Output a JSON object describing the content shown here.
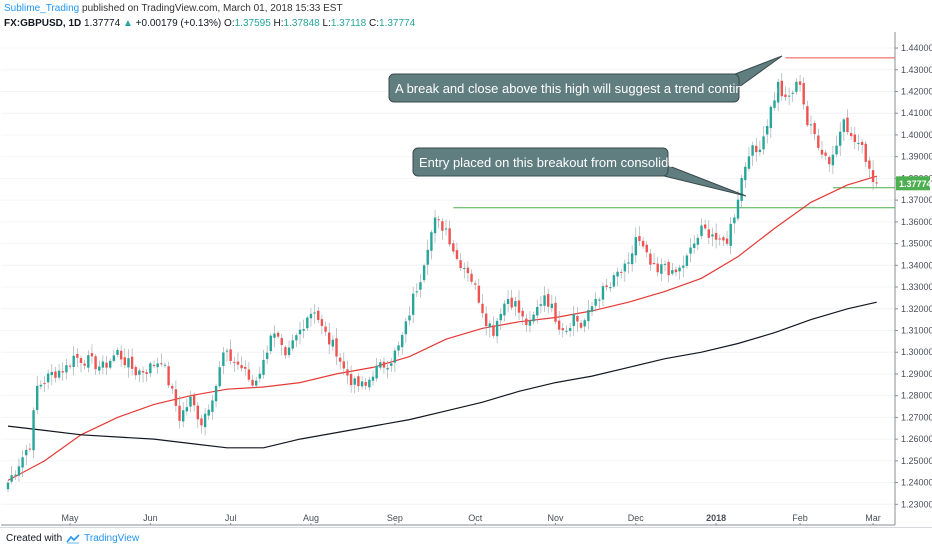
{
  "header": {
    "author": "Sublime_Trading",
    "published": "published on TradingView.com, March 01, 2018 15:33 EST"
  },
  "quote": {
    "symbol": "FX:GBPUSD, 1D",
    "last": "1.37774",
    "arrow": "▲",
    "change": "+0.00179 (+0.13%)",
    "o_label": "O:",
    "o": "1.37595",
    "h_label": "H:",
    "h": "1.37848",
    "l_label": "L:",
    "l": "1.37118",
    "c_label": "C:",
    "c": "1.37774"
  },
  "footer": {
    "created_with": "Created with",
    "brand": "TradingView"
  },
  "colors": {
    "up": "#26a69a",
    "down": "#ef5350",
    "ma_short": "#e53935",
    "ma_long": "#131722",
    "level_green": "#4caf50",
    "level_red": "#ef5350",
    "callout_fill": "#607d80"
  },
  "chart_data": {
    "type": "candlestick",
    "symbol": "FX:GBPUSD",
    "interval": "1D",
    "y_axis": {
      "range": [
        1.226,
        1.446
      ],
      "ticks": [
        "1.44000",
        "1.43000",
        "1.42000",
        "1.41000",
        "1.40000",
        "1.39000",
        "1.38000",
        "1.37000",
        "1.36000",
        "1.35000",
        "1.34000",
        "1.33000",
        "1.32000",
        "1.31000",
        "1.30000",
        "1.29000",
        "1.28000",
        "1.27000",
        "1.26000",
        "1.25000",
        "1.24000",
        "1.23000"
      ]
    },
    "x_axis": {
      "labels": [
        {
          "label": "May",
          "index": 17
        },
        {
          "label": "Jun",
          "index": 39
        },
        {
          "label": "Jul",
          "index": 61
        },
        {
          "label": "Aug",
          "index": 83
        },
        {
          "label": "Sep",
          "index": 106
        },
        {
          "label": "Oct",
          "index": 128
        },
        {
          "label": "Nov",
          "index": 150
        },
        {
          "label": "Dec",
          "index": 172
        },
        {
          "label": "2018",
          "index": 194
        },
        {
          "label": "Feb",
          "index": 217
        },
        {
          "label": "Mar",
          "index": 237
        }
      ]
    },
    "last_price_label": "1.37774",
    "close_path": [
      [
        0,
        1.24
      ],
      [
        2,
        1.246
      ],
      [
        4,
        1.252
      ],
      [
        6,
        1.258
      ],
      [
        8,
        1.284
      ],
      [
        12,
        1.29
      ],
      [
        16,
        1.293
      ],
      [
        18,
        1.298
      ],
      [
        22,
        1.296
      ],
      [
        26,
        1.293
      ],
      [
        30,
        1.3
      ],
      [
        32,
        1.296
      ],
      [
        35,
        1.291
      ],
      [
        38,
        1.292
      ],
      [
        42,
        1.297
      ],
      [
        45,
        1.281
      ],
      [
        47,
        1.27
      ],
      [
        50,
        1.278
      ],
      [
        53,
        1.268
      ],
      [
        55,
        1.276
      ],
      [
        57,
        1.285
      ],
      [
        59,
        1.299
      ],
      [
        61,
        1.297
      ],
      [
        64,
        1.293
      ],
      [
        67,
        1.285
      ],
      [
        70,
        1.295
      ],
      [
        72,
        1.309
      ],
      [
        74,
        1.305
      ],
      [
        76,
        1.296
      ],
      [
        78,
        1.304
      ],
      [
        80,
        1.31
      ],
      [
        82,
        1.317
      ],
      [
        84,
        1.32
      ],
      [
        86,
        1.311
      ],
      [
        88,
        1.305
      ],
      [
        90,
        1.301
      ],
      [
        92,
        1.292
      ],
      [
        95,
        1.285
      ],
      [
        98,
        1.284
      ],
      [
        100,
        1.291
      ],
      [
        102,
        1.293
      ],
      [
        105,
        1.297
      ],
      [
        107,
        1.302
      ],
      [
        109,
        1.312
      ],
      [
        111,
        1.325
      ],
      [
        113,
        1.335
      ],
      [
        115,
        1.35
      ],
      [
        117,
        1.36
      ],
      [
        120,
        1.357
      ],
      [
        123,
        1.343
      ],
      [
        126,
        1.338
      ],
      [
        129,
        1.325
      ],
      [
        131,
        1.315
      ],
      [
        133,
        1.31
      ],
      [
        135,
        1.32
      ],
      [
        137,
        1.325
      ],
      [
        139,
        1.322
      ],
      [
        141,
        1.315
      ],
      [
        143,
        1.312
      ],
      [
        145,
        1.32
      ],
      [
        147,
        1.327
      ],
      [
        149,
        1.32
      ],
      [
        151,
        1.313
      ],
      [
        153,
        1.311
      ],
      [
        155,
        1.317
      ],
      [
        157,
        1.312
      ],
      [
        159,
        1.317
      ],
      [
        161,
        1.325
      ],
      [
        163,
        1.328
      ],
      [
        165,
        1.33
      ],
      [
        167,
        1.336
      ],
      [
        170,
        1.339
      ],
      [
        172,
        1.353
      ],
      [
        174,
        1.347
      ],
      [
        176,
        1.34
      ],
      [
        178,
        1.336
      ],
      [
        180,
        1.341
      ],
      [
        182,
        1.335
      ],
      [
        184,
        1.338
      ],
      [
        186,
        1.343
      ],
      [
        188,
        1.35
      ],
      [
        190,
        1.356
      ],
      [
        193,
        1.355
      ],
      [
        195,
        1.349
      ],
      [
        197,
        1.352
      ],
      [
        199,
        1.364
      ],
      [
        201,
        1.38
      ],
      [
        203,
        1.393
      ],
      [
        205,
        1.392
      ],
      [
        207,
        1.4
      ],
      [
        209,
        1.412
      ],
      [
        211,
        1.423
      ],
      [
        213,
        1.415
      ],
      [
        215,
        1.42
      ],
      [
        217,
        1.425
      ],
      [
        219,
        1.405
      ],
      [
        221,
        1.4
      ],
      [
        223,
        1.393
      ],
      [
        225,
        1.388
      ],
      [
        227,
        1.395
      ],
      [
        229,
        1.41
      ],
      [
        231,
        1.398
      ],
      [
        233,
        1.396
      ],
      [
        235,
        1.39
      ],
      [
        237,
        1.38
      ],
      [
        238,
        1.3777
      ]
    ],
    "series": [
      {
        "type": "line",
        "color": "#e53935",
        "values": [
          [
            0,
            1.241
          ],
          [
            10,
            1.25
          ],
          [
            20,
            1.262
          ],
          [
            30,
            1.27
          ],
          [
            40,
            1.276
          ],
          [
            50,
            1.28
          ],
          [
            60,
            1.283
          ],
          [
            70,
            1.284
          ],
          [
            80,
            1.286
          ],
          [
            90,
            1.29
          ],
          [
            100,
            1.293
          ],
          [
            110,
            1.298
          ],
          [
            120,
            1.306
          ],
          [
            130,
            1.311
          ],
          [
            140,
            1.314
          ],
          [
            150,
            1.316
          ],
          [
            160,
            1.319
          ],
          [
            170,
            1.323
          ],
          [
            180,
            1.328
          ],
          [
            190,
            1.334
          ],
          [
            200,
            1.344
          ],
          [
            210,
            1.357
          ],
          [
            220,
            1.369
          ],
          [
            230,
            1.377
          ],
          [
            238,
            1.381
          ]
        ]
      },
      {
        "type": "line",
        "color": "#131722",
        "values": [
          [
            0,
            1.266
          ],
          [
            10,
            1.264
          ],
          [
            20,
            1.262
          ],
          [
            30,
            1.261
          ],
          [
            40,
            1.26
          ],
          [
            50,
            1.258
          ],
          [
            60,
            1.256
          ],
          [
            70,
            1.256
          ],
          [
            80,
            1.26
          ],
          [
            90,
            1.263
          ],
          [
            100,
            1.266
          ],
          [
            110,
            1.269
          ],
          [
            120,
            1.273
          ],
          [
            130,
            1.277
          ],
          [
            140,
            1.282
          ],
          [
            150,
            1.286
          ],
          [
            160,
            1.289
          ],
          [
            170,
            1.293
          ],
          [
            180,
            1.297
          ],
          [
            190,
            1.3
          ],
          [
            200,
            1.304
          ],
          [
            210,
            1.309
          ],
          [
            220,
            1.315
          ],
          [
            230,
            1.32
          ],
          [
            238,
            1.323
          ]
        ]
      }
    ],
    "levels": [
      {
        "price": 1.4355,
        "from_index": 213,
        "to_index": 245,
        "color": "#ef5350"
      },
      {
        "price": 1.3665,
        "from_index": 122,
        "to_index": 245,
        "color": "#4caf50"
      },
      {
        "price": 1.3757,
        "from_index": 226,
        "to_index": 245,
        "color": "#4caf50"
      }
    ],
    "annotations": [
      "A break and close above this high will suggest a trend continuation",
      "Entry placed on this breakout from consolidation"
    ]
  }
}
